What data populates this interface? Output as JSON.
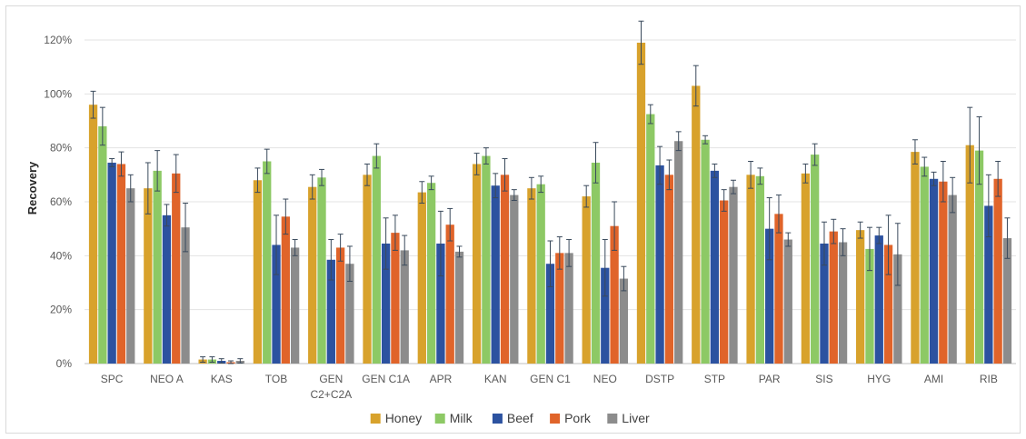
{
  "chart_data": {
    "type": "bar",
    "title": "",
    "xlabel": "",
    "ylabel": "Recovery",
    "ylim": [
      0,
      120
    ],
    "yticks": [
      "0%",
      "20%",
      "40%",
      "60%",
      "80%",
      "100%",
      "120%"
    ],
    "grid": true,
    "legend_position": "bottom",
    "categories": [
      "SPC",
      "NEO A",
      "KAS",
      "TOB",
      "GEN C2+C2A",
      "GEN C1A",
      "APR",
      "KAN",
      "GEN C1",
      "NEO",
      "DSTP",
      "STP",
      "PAR",
      "SIS",
      "HYG",
      "AMI",
      "RIB"
    ],
    "category_lines": [
      [
        "SPC"
      ],
      [
        "NEO A"
      ],
      [
        "KAS"
      ],
      [
        "TOB"
      ],
      [
        "GEN",
        "C2+C2A"
      ],
      [
        "GEN C1A"
      ],
      [
        "APR"
      ],
      [
        "KAN"
      ],
      [
        "GEN C1"
      ],
      [
        "NEO"
      ],
      [
        "DSTP"
      ],
      [
        "STP"
      ],
      [
        "PAR"
      ],
      [
        "SIS"
      ],
      [
        "HYG"
      ],
      [
        "AMI"
      ],
      [
        "RIB"
      ]
    ],
    "series": [
      {
        "name": "Honey",
        "color": "#D8A22C",
        "values": [
          96,
          65,
          1.5,
          68,
          65.5,
          70,
          63.5,
          74,
          65,
          62,
          119,
          103,
          70,
          70.5,
          49.5,
          78.5,
          81
        ],
        "errors": [
          5,
          9.5,
          1,
          4.5,
          4.5,
          4,
          4,
          4,
          4,
          4,
          8,
          7.5,
          5,
          3.5,
          3,
          4.5,
          14
        ]
      },
      {
        "name": "Milk",
        "color": "#8DC965",
        "values": [
          88,
          71.5,
          1.5,
          75,
          69,
          77,
          67,
          77,
          66.5,
          74.5,
          92.5,
          83,
          69.5,
          77.5,
          42.5,
          73,
          79
        ],
        "errors": [
          7,
          7.5,
          1,
          4.5,
          3,
          4.5,
          2.5,
          3,
          3,
          7.5,
          3.5,
          1.5,
          3,
          4,
          8,
          3.5,
          12.5
        ]
      },
      {
        "name": "Beef",
        "color": "#2C52A0",
        "values": [
          74.5,
          55,
          1,
          44,
          38.5,
          44.5,
          44.5,
          66,
          37,
          35.5,
          73.5,
          71.5,
          50,
          44.5,
          47.5,
          68.5,
          58.5
        ],
        "errors": [
          1.5,
          4,
          0.8,
          11,
          7.5,
          9.5,
          12,
          4.5,
          8.5,
          10.5,
          7,
          2.5,
          11.5,
          8,
          3,
          2.5,
          11.5
        ]
      },
      {
        "name": "Pork",
        "color": "#E0642A",
        "values": [
          74,
          70.5,
          0.5,
          54.5,
          43,
          48.5,
          51.5,
          70,
          41,
          51,
          70,
          60.5,
          55.5,
          49,
          44,
          67.5,
          68.5
        ],
        "errors": [
          4.5,
          7,
          0.5,
          6.5,
          5,
          6.5,
          6,
          6,
          6,
          9,
          5.5,
          4,
          7,
          4.5,
          11,
          7.5,
          6.5
        ]
      },
      {
        "name": "Liver",
        "color": "#8C8C8C",
        "values": [
          65,
          50.5,
          1,
          43,
          37,
          42,
          41.5,
          62.5,
          41,
          31.5,
          82.5,
          65.5,
          46,
          45,
          40.5,
          62.5,
          46.5
        ],
        "errors": [
          5,
          9,
          0.8,
          3,
          6.5,
          5.5,
          2,
          2,
          5,
          4.5,
          3.5,
          2.5,
          2.5,
          5,
          11.5,
          6.5,
          7.5
        ]
      }
    ]
  }
}
